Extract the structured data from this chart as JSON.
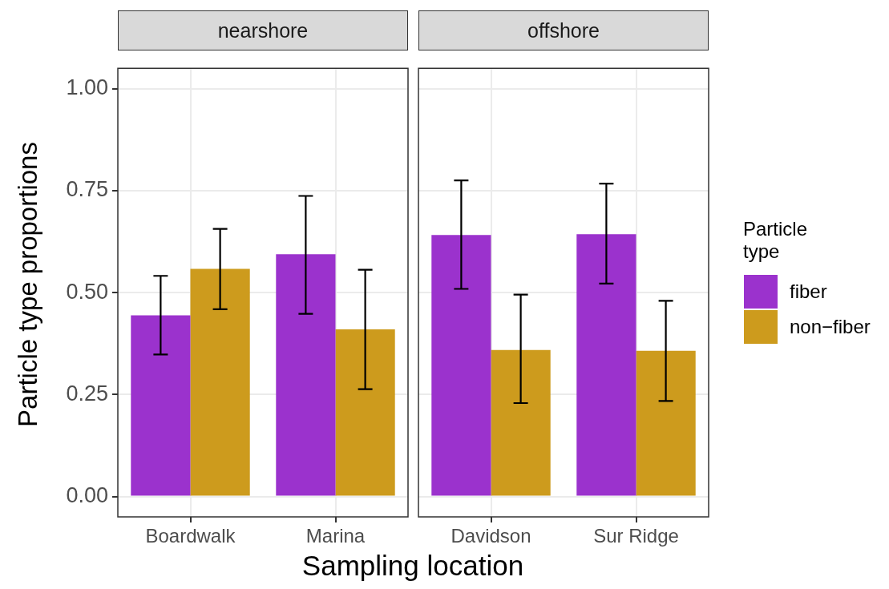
{
  "chart_data": [
    {
      "type": "bar",
      "title": "nearshore",
      "xlabel": "Sampling location",
      "ylabel": "Particle type proportions",
      "legend_title": "Particle type",
      "categories": [
        "Boardwalk",
        "Marina"
      ],
      "series": [
        {
          "name": "fiber",
          "color": "#9b32cd",
          "values": [
            0.444,
            0.594
          ],
          "errors": [
            [
              0.348,
              0.541
            ],
            [
              0.448,
              0.737
            ]
          ]
        },
        {
          "name": "non−fiber",
          "color": "#cd9b1d",
          "values": [
            0.558,
            0.41
          ],
          "errors": [
            [
              0.459,
              0.656
            ],
            [
              0.263,
              0.556
            ]
          ]
        }
      ],
      "ylim": [
        -0.05,
        1.05
      ],
      "yticks": [
        {
          "value": 0,
          "label": "0.00"
        },
        {
          "value": 0.25,
          "label": "0.25"
        },
        {
          "value": 0.5,
          "label": "0.50"
        },
        {
          "value": 0.75,
          "label": "0.75"
        },
        {
          "value": 1,
          "label": "1.00"
        }
      ],
      "grid": true,
      "legend": "right"
    },
    {
      "type": "bar",
      "title": "offshore",
      "categories": [
        "Davidson",
        "Sur Ridge"
      ],
      "series": [
        {
          "color": "#9b32cd",
          "values": [
            0.641,
            0.643
          ],
          "errors": [
            [
              0.509,
              0.775
            ],
            [
              0.522,
              0.767
            ]
          ]
        },
        {
          "color": "#cd9b1d",
          "values": [
            0.359,
            0.357
          ],
          "errors": [
            [
              0.229,
              0.495
            ],
            [
              0.234,
              0.48
            ]
          ]
        }
      ],
      "ylim": [
        -0.05,
        1.05
      ],
      "yticks": [
        {
          "value": 0,
          "label": null
        },
        {
          "value": 0.25,
          "label": null
        },
        {
          "value": 0.5,
          "label": null
        },
        {
          "value": 0.75,
          "label": null
        },
        {
          "value": 1,
          "label": null
        }
      ],
      "tick_labels": "x",
      "grid": true
    }
  ]
}
